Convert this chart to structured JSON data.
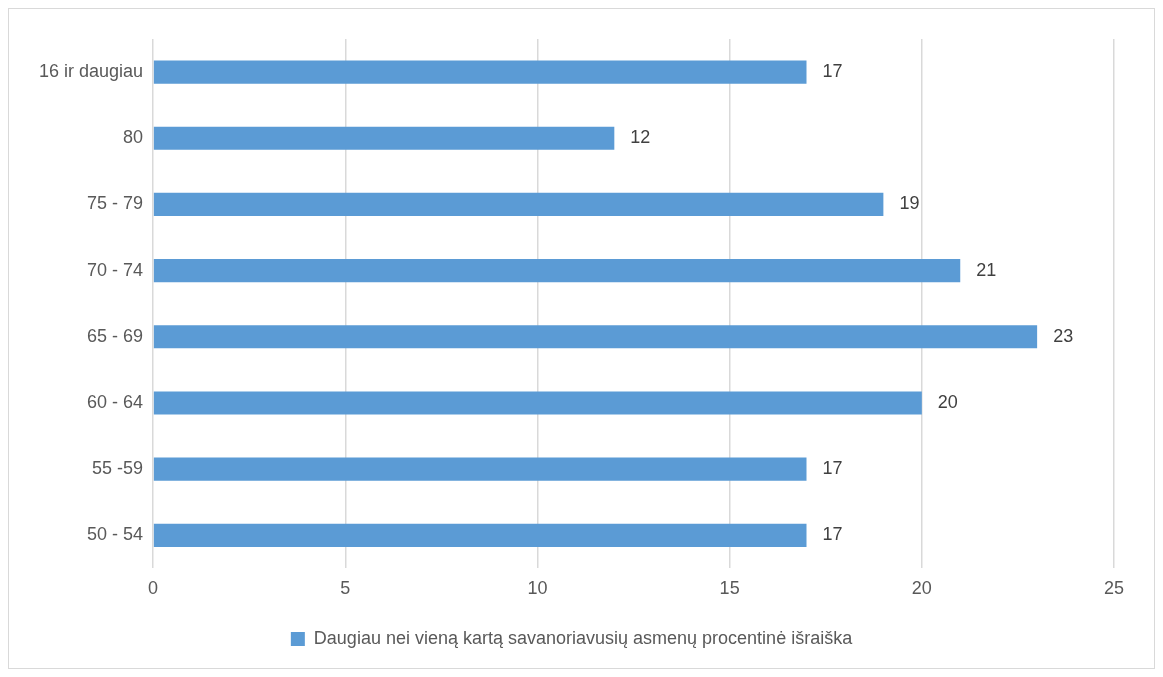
{
  "chart_data": {
    "type": "bar",
    "orientation": "horizontal",
    "categories": [
      "16 ir daugiau",
      "80",
      "75 - 79",
      "70 - 74",
      "65 - 69",
      "60 - 64",
      "55 -59",
      "50 - 54"
    ],
    "series": [
      {
        "name": "Daugiau nei vieną kartą savanoriavusių asmenų procentinė išraiška",
        "color": "#5b9bd5",
        "values": [
          17,
          12,
          19,
          21,
          23,
          20,
          17,
          17
        ]
      }
    ],
    "xlim": [
      0,
      25
    ],
    "xticks": [
      0,
      5,
      10,
      15,
      20,
      25
    ],
    "grid": "x",
    "legend": "bottom",
    "data_labels": true
  }
}
